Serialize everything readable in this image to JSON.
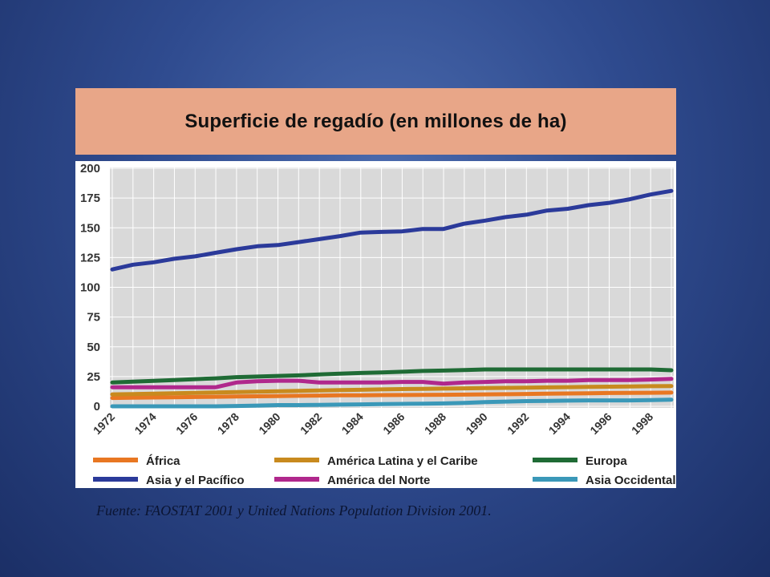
{
  "title": "Superficie de regadío (en millones de ha)",
  "source": "Fuente: FAOSTAT 2001 y United Nations Population Division 2001.",
  "chart_data": {
    "type": "line",
    "title": "Superficie de regadío (en millones de ha)",
    "xlabel": "",
    "ylabel": "",
    "xlim": [
      1972,
      1999
    ],
    "ylim": [
      0,
      200
    ],
    "yticks": [
      0,
      25,
      50,
      75,
      100,
      125,
      150,
      175,
      200
    ],
    "xticks": [
      "1972",
      "1974",
      "1976",
      "1978",
      "1980",
      "1982",
      "1984",
      "1986",
      "1988",
      "1990",
      "1992",
      "1994",
      "1996",
      "1998"
    ],
    "grid": true,
    "legend_position": "bottom",
    "x": [
      1972,
      1973,
      1974,
      1975,
      1976,
      1977,
      1978,
      1979,
      1980,
      1981,
      1982,
      1983,
      1984,
      1985,
      1986,
      1987,
      1988,
      1989,
      1990,
      1991,
      1992,
      1993,
      1994,
      1995,
      1996,
      1997,
      1998,
      1999
    ],
    "series": [
      {
        "name": "África",
        "color": "#e87722",
        "values": [
          7,
          7.2,
          7.4,
          7.6,
          7.8,
          8,
          8.2,
          8.4,
          8.6,
          8.8,
          9,
          9.2,
          9.3,
          9.4,
          9.5,
          9.6,
          9.7,
          9.8,
          10,
          10.2,
          10.4,
          10.6,
          10.8,
          11,
          11.2,
          11.3,
          11.4,
          11.5
        ]
      },
      {
        "name": "América Latina y el Caribe",
        "color": "#c88a1e",
        "values": [
          10,
          10.3,
          10.6,
          11,
          11.3,
          11.6,
          12,
          12.3,
          12.6,
          13,
          13.3,
          13.6,
          13.9,
          14.2,
          14.5,
          14.7,
          14.9,
          15.1,
          15.3,
          15.5,
          15.7,
          15.9,
          16.1,
          16.3,
          16.5,
          16.7,
          16.9,
          17
        ]
      },
      {
        "name": "Europa",
        "color": "#1f6b35",
        "values": [
          20,
          20.7,
          21.4,
          22.1,
          22.8,
          23.5,
          24.5,
          25,
          25.5,
          26,
          26.8,
          27.5,
          28,
          28.5,
          29,
          29.7,
          30,
          30.5,
          31,
          31,
          31,
          31,
          31,
          31,
          31,
          31,
          31,
          30.3
        ]
      },
      {
        "name": "Asia y el Pacífico",
        "color": "#2b3a9a",
        "values": [
          115,
          119,
          121,
          124,
          126,
          129,
          132,
          134.5,
          135.5,
          138,
          140.5,
          143,
          146,
          146.5,
          147,
          149,
          149,
          153.5,
          156,
          159,
          161,
          164.5,
          166,
          169,
          171,
          174,
          178,
          181
        ]
      },
      {
        "name": "América del Norte",
        "color": "#b0288c",
        "values": [
          16,
          16,
          16,
          16,
          16,
          16,
          20,
          21,
          21.5,
          21.5,
          20,
          20,
          20,
          20,
          20.5,
          20.5,
          19,
          20,
          20.5,
          21,
          21,
          21.5,
          21.5,
          22,
          22,
          22,
          22.5,
          23
        ]
      },
      {
        "name": "Asia Occidental",
        "color": "#3a98b8",
        "values": [
          0,
          0,
          0,
          0,
          0,
          0,
          0.3,
          0.6,
          1,
          1,
          1.2,
          1.4,
          1.6,
          1.8,
          2,
          2.2,
          2.4,
          2.8,
          3.6,
          4,
          4.4,
          4.6,
          4.8,
          5,
          5,
          5,
          5.2,
          5.5
        ]
      }
    ]
  }
}
